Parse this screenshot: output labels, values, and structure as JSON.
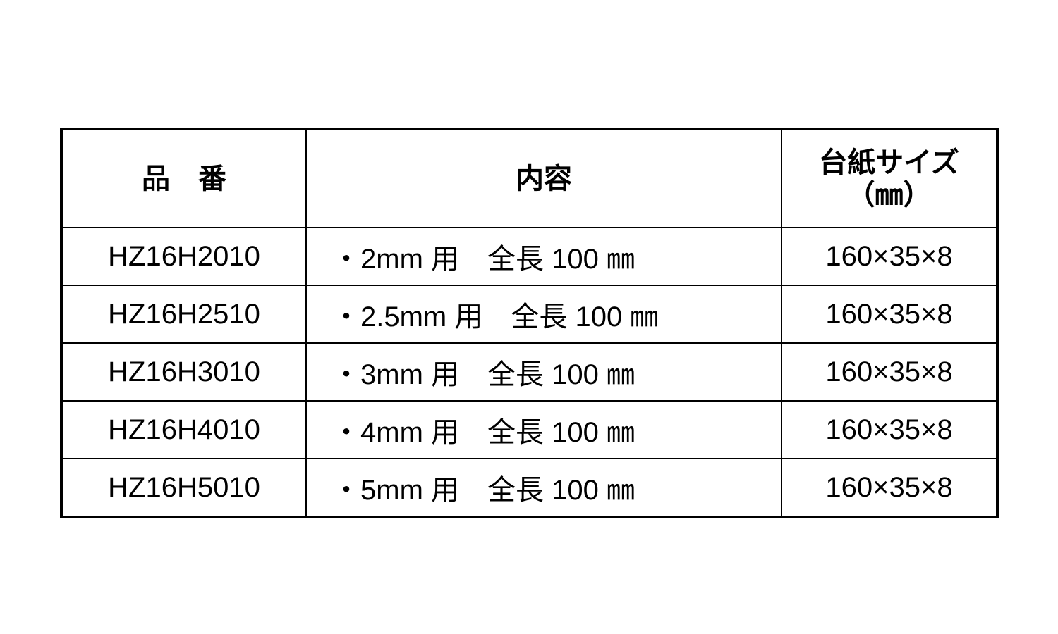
{
  "table": {
    "headers": {
      "product_no": "品　番",
      "contents": "内容",
      "card_size": "台紙サイズ",
      "card_size_unit": "（㎜）"
    },
    "rows": [
      {
        "product_no": "HZ16H2010",
        "size": "・2mm 用",
        "length": "全長 100 ㎜",
        "card_size": "160×35×8"
      },
      {
        "product_no": "HZ16H2510",
        "size": "・2.5mm 用",
        "length": "全長 100 ㎜",
        "card_size": "160×35×8"
      },
      {
        "product_no": "HZ16H3010",
        "size": "・3mm 用",
        "length": "全長 100 ㎜",
        "card_size": "160×35×8"
      },
      {
        "product_no": "HZ16H4010",
        "size": "・4mm 用",
        "length": "全長 100 ㎜",
        "card_size": "160×35×8"
      },
      {
        "product_no": "HZ16H5010",
        "size": "・5mm 用",
        "length": "全長 100 ㎜",
        "card_size": "160×35×8"
      }
    ]
  }
}
